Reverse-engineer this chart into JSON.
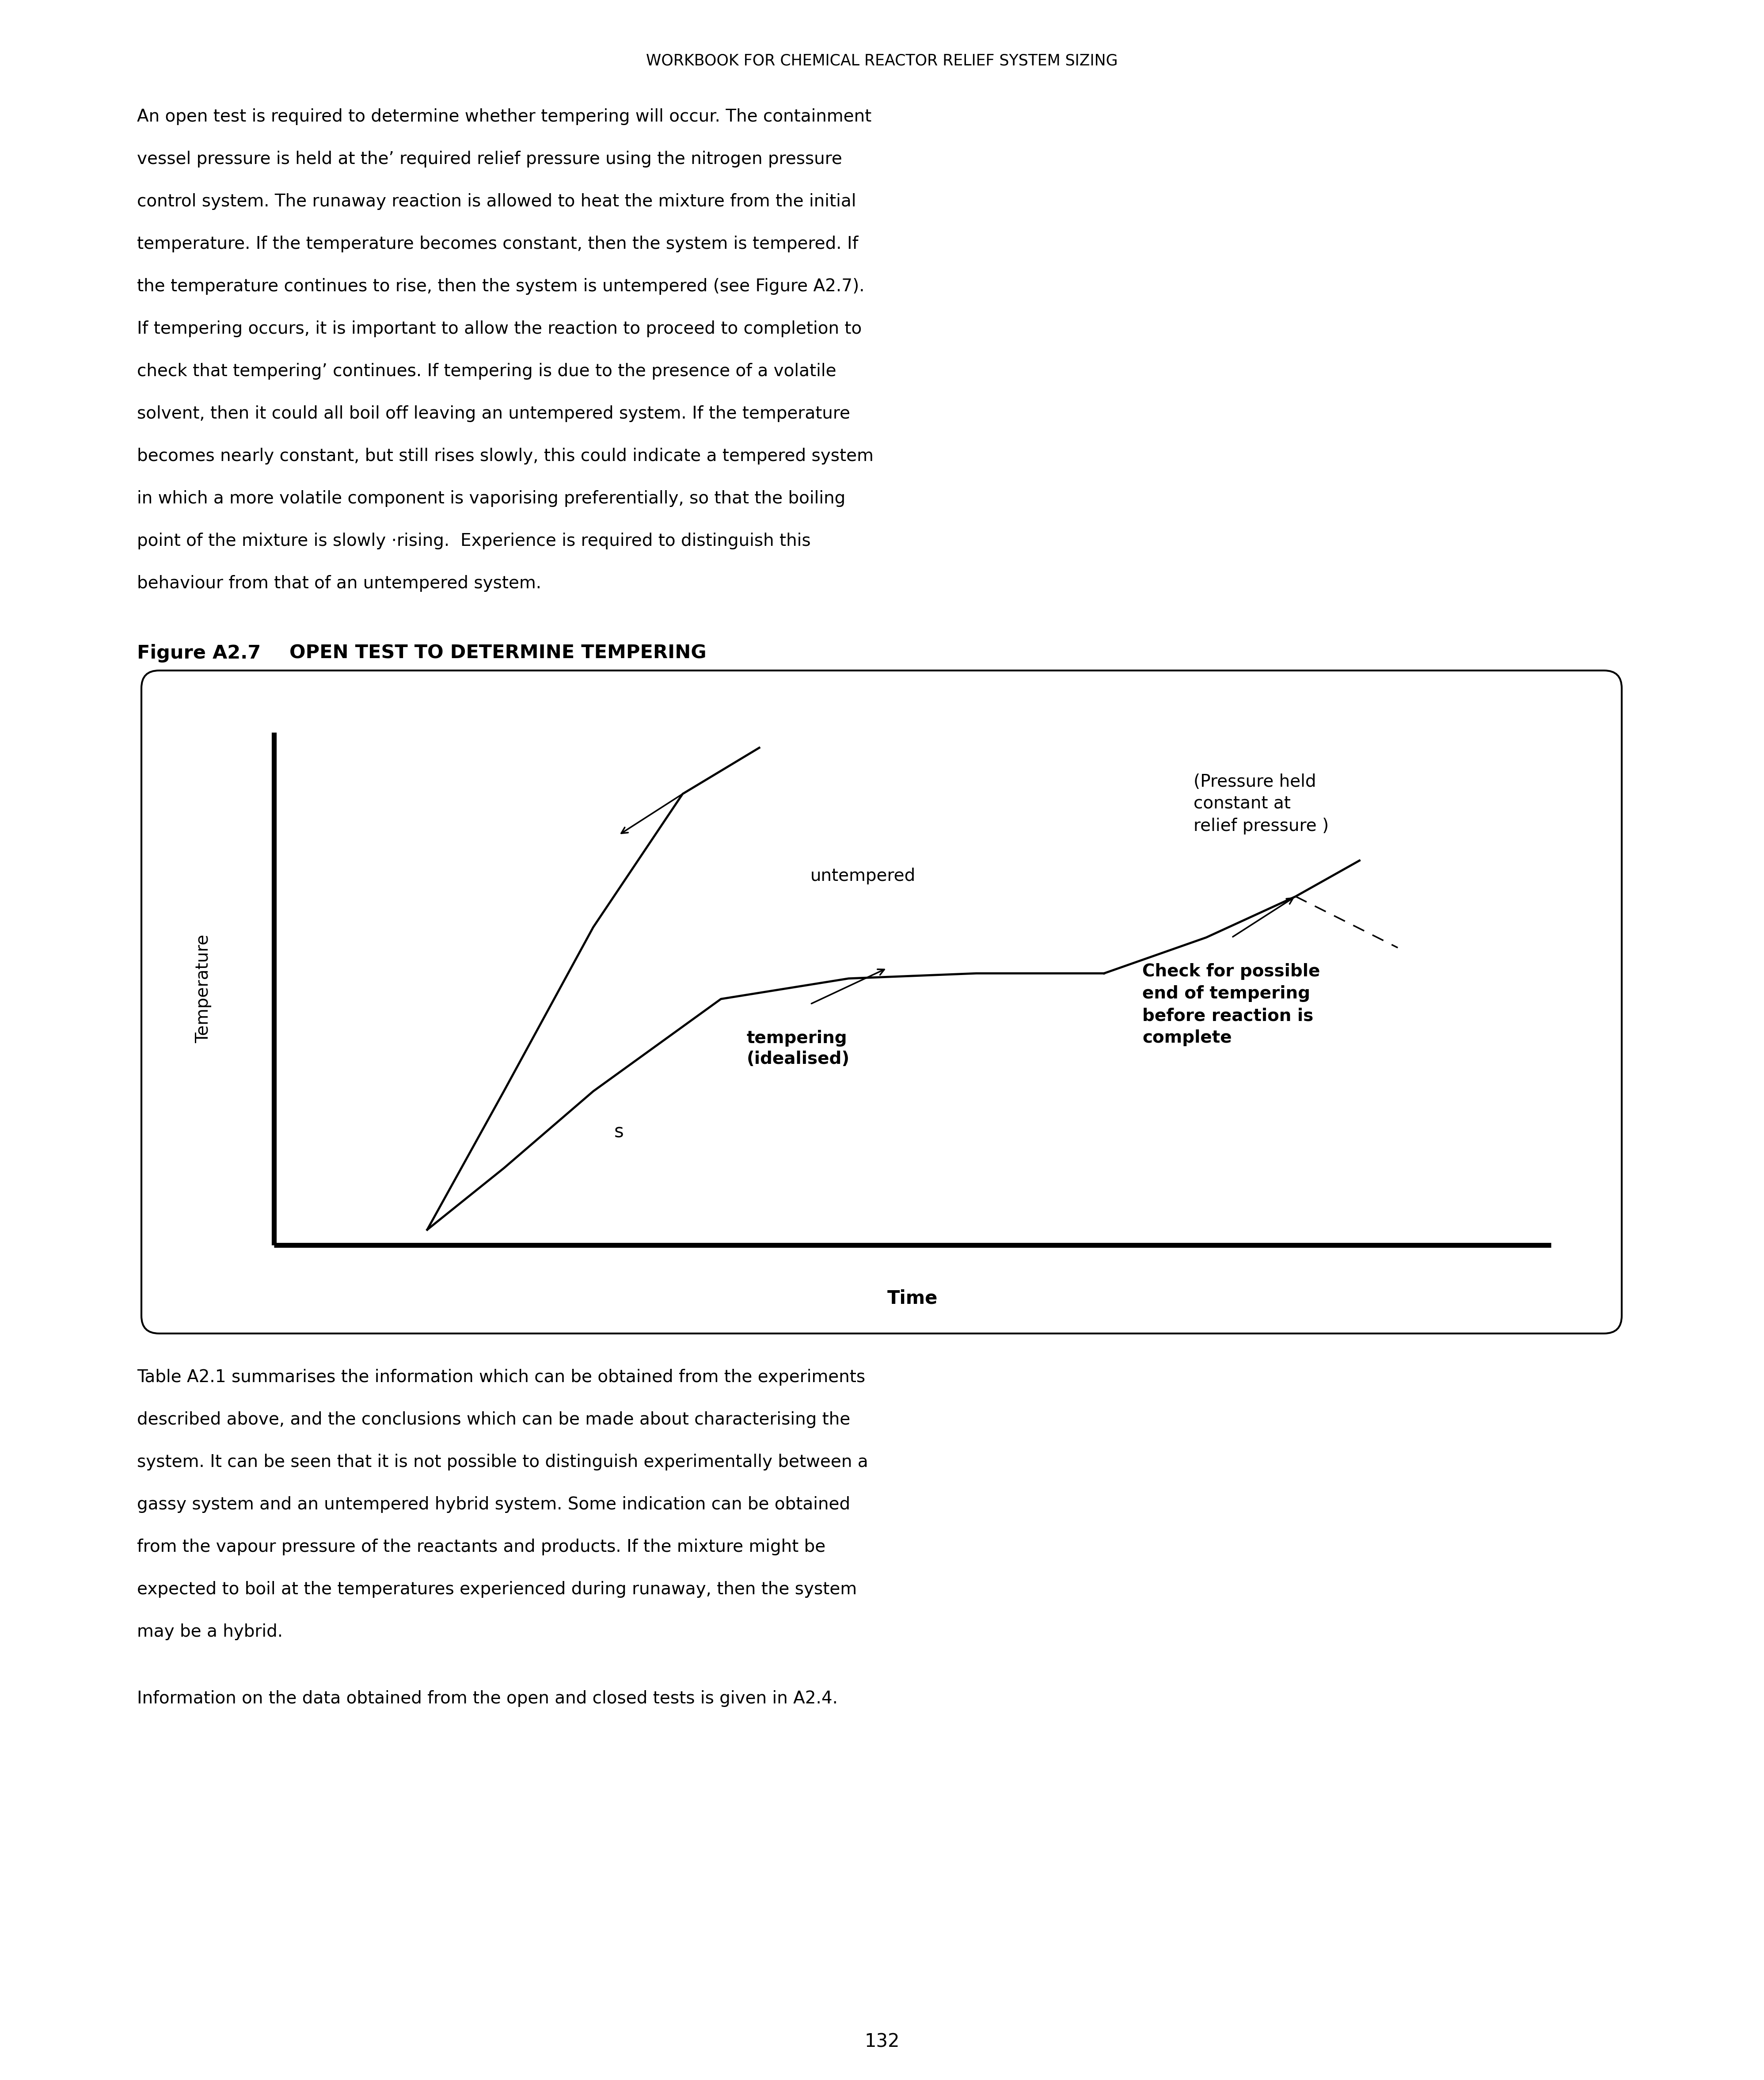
{
  "page_title": "WORKBOOK FOR CHEMICAL REACTOR RELIEF SYSTEM SIZING",
  "p1_lines": [
    "An open test is required to determine whether tempering will occur. The containment",
    "vessel pressure is held at the’ required relief pressure using the nitrogen pressure",
    "control system. The runaway reaction is allowed to heat the mixture from the initial",
    "temperature. If the temperature becomes constant, then the system is tempered. If",
    "the temperature continues to rise, then the system is untempered (see Figure A2.7).",
    "If tempering occurs, it is important to allow the reaction to proceed to completion to",
    "check that tempering’ continues. If tempering is due to the presence of a volatile",
    "solvent, then it could all boil off leaving an untempered system. If the temperature",
    "becomes nearly constant, but still rises slowly, this could indicate a tempered system",
    "in which a more volatile component is vaporising preferentially, so that the boiling",
    "point of the mixture is slowly ·rising.  Experience is required to distinguish this",
    "behaviour from that of an untempered system."
  ],
  "fig_label": "Figure A2.7",
  "fig_title": "   OPEN TEST TO DETERMINE TEMPERING",
  "fig_xlabel": "Time",
  "fig_ylabel": "Temperature",
  "label_untempered": "untempered",
  "label_tempering": "tempering\n(idealised)",
  "label_pressure": "(Pressure held\nconstant at\nrelief pressure )",
  "label_check": "Check for possible\nend of tempering\nbefore reaction is\ncomplete",
  "p2_lines": [
    "Table A2.1 summarises the information which can be obtained from the experiments",
    "described above, and the conclusions which can be made about characterising the",
    "system. It can be seen that it is not possible to distinguish experimentally between a",
    "gassy system and an untempered hybrid system. Some indication can be obtained",
    "from the vapour pressure of the reactants and products. If the mixture might be",
    "expected to boil at the temperatures experienced during runaway, then the system",
    "may be a hybrid."
  ],
  "p3": "Information on the data obtained from the open and closed tests is given in A2.4.",
  "page_number": "132",
  "bg": "#ffffff",
  "fg": "#000000"
}
